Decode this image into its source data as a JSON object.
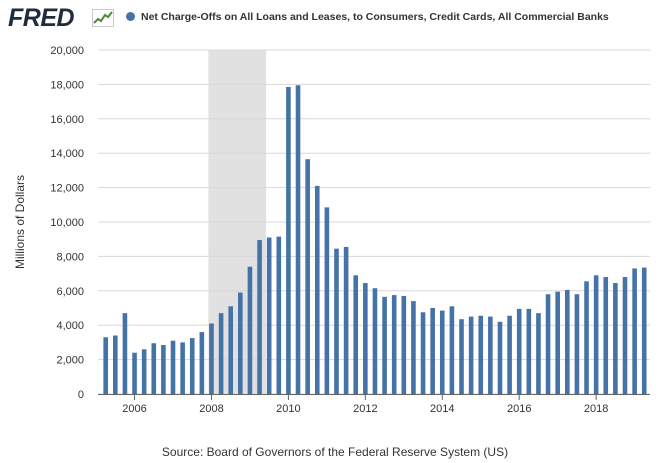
{
  "logo": {
    "text": "FRED"
  },
  "colors": {
    "bar": "#4572a7",
    "recession": "#e1e1e1",
    "grid": "#d8d8d8",
    "logo_line": "#4b8a3c"
  },
  "chart_data": {
    "type": "bar",
    "title": "Net Charge-Offs on All Loans and Leases, to Consumers, Credit Cards, All Commercial Banks",
    "xlabel": "",
    "ylabel": "Millions of Dollars",
    "ylim": [
      0,
      20000
    ],
    "yticks": [
      0,
      2000,
      4000,
      6000,
      8000,
      10000,
      12000,
      14000,
      16000,
      18000,
      20000
    ],
    "ytick_labels": [
      "0",
      "2,000",
      "4,000",
      "6,000",
      "8,000",
      "10,000",
      "12,000",
      "14,000",
      "16,000",
      "18,000",
      "20,000"
    ],
    "xlim": [
      2005.05,
      2019.4
    ],
    "xticks": [
      2006,
      2008,
      2010,
      2012,
      2014,
      2016,
      2018
    ],
    "xtick_labels": [
      "2006",
      "2008",
      "2010",
      "2012",
      "2014",
      "2016",
      "2018"
    ],
    "recession": [
      2007.92,
      2009.42
    ],
    "grid": true,
    "series": [
      {
        "name": "Net Charge-Offs on All Loans and Leases, to Consumers, Credit Cards, All Commercial Banks",
        "x": [
          2005.25,
          2005.5,
          2005.75,
          2006.0,
          2006.25,
          2006.5,
          2006.75,
          2007.0,
          2007.25,
          2007.5,
          2007.75,
          2008.0,
          2008.25,
          2008.5,
          2008.75,
          2009.0,
          2009.25,
          2009.5,
          2009.75,
          2010.0,
          2010.25,
          2010.5,
          2010.75,
          2011.0,
          2011.25,
          2011.5,
          2011.75,
          2012.0,
          2012.25,
          2012.5,
          2012.75,
          2013.0,
          2013.25,
          2013.5,
          2013.75,
          2014.0,
          2014.25,
          2014.5,
          2014.75,
          2015.0,
          2015.25,
          2015.5,
          2015.75,
          2016.0,
          2016.25,
          2016.5,
          2016.75,
          2017.0,
          2017.25,
          2017.5,
          2017.75,
          2018.0,
          2018.25,
          2018.5,
          2018.75,
          2019.0,
          2019.25
        ],
        "values": [
          3300,
          3400,
          4700,
          2400,
          2600,
          2950,
          2850,
          3100,
          3000,
          3250,
          3600,
          4100,
          4700,
          5100,
          5900,
          7400,
          8950,
          9100,
          9150,
          17850,
          17950,
          13650,
          12100,
          10850,
          8450,
          8550,
          6900,
          6450,
          6150,
          5650,
          5750,
          5700,
          5400,
          4750,
          5000,
          4850,
          5100,
          4350,
          4500,
          4550,
          4500,
          4200,
          4550,
          4950,
          4950,
          4700,
          5800,
          5950,
          6050,
          5800,
          6550,
          6900,
          6800,
          6450,
          6800,
          7300,
          7350
        ]
      }
    ]
  },
  "source": "Source: Board of Governors of the Federal Reserve System (US)"
}
